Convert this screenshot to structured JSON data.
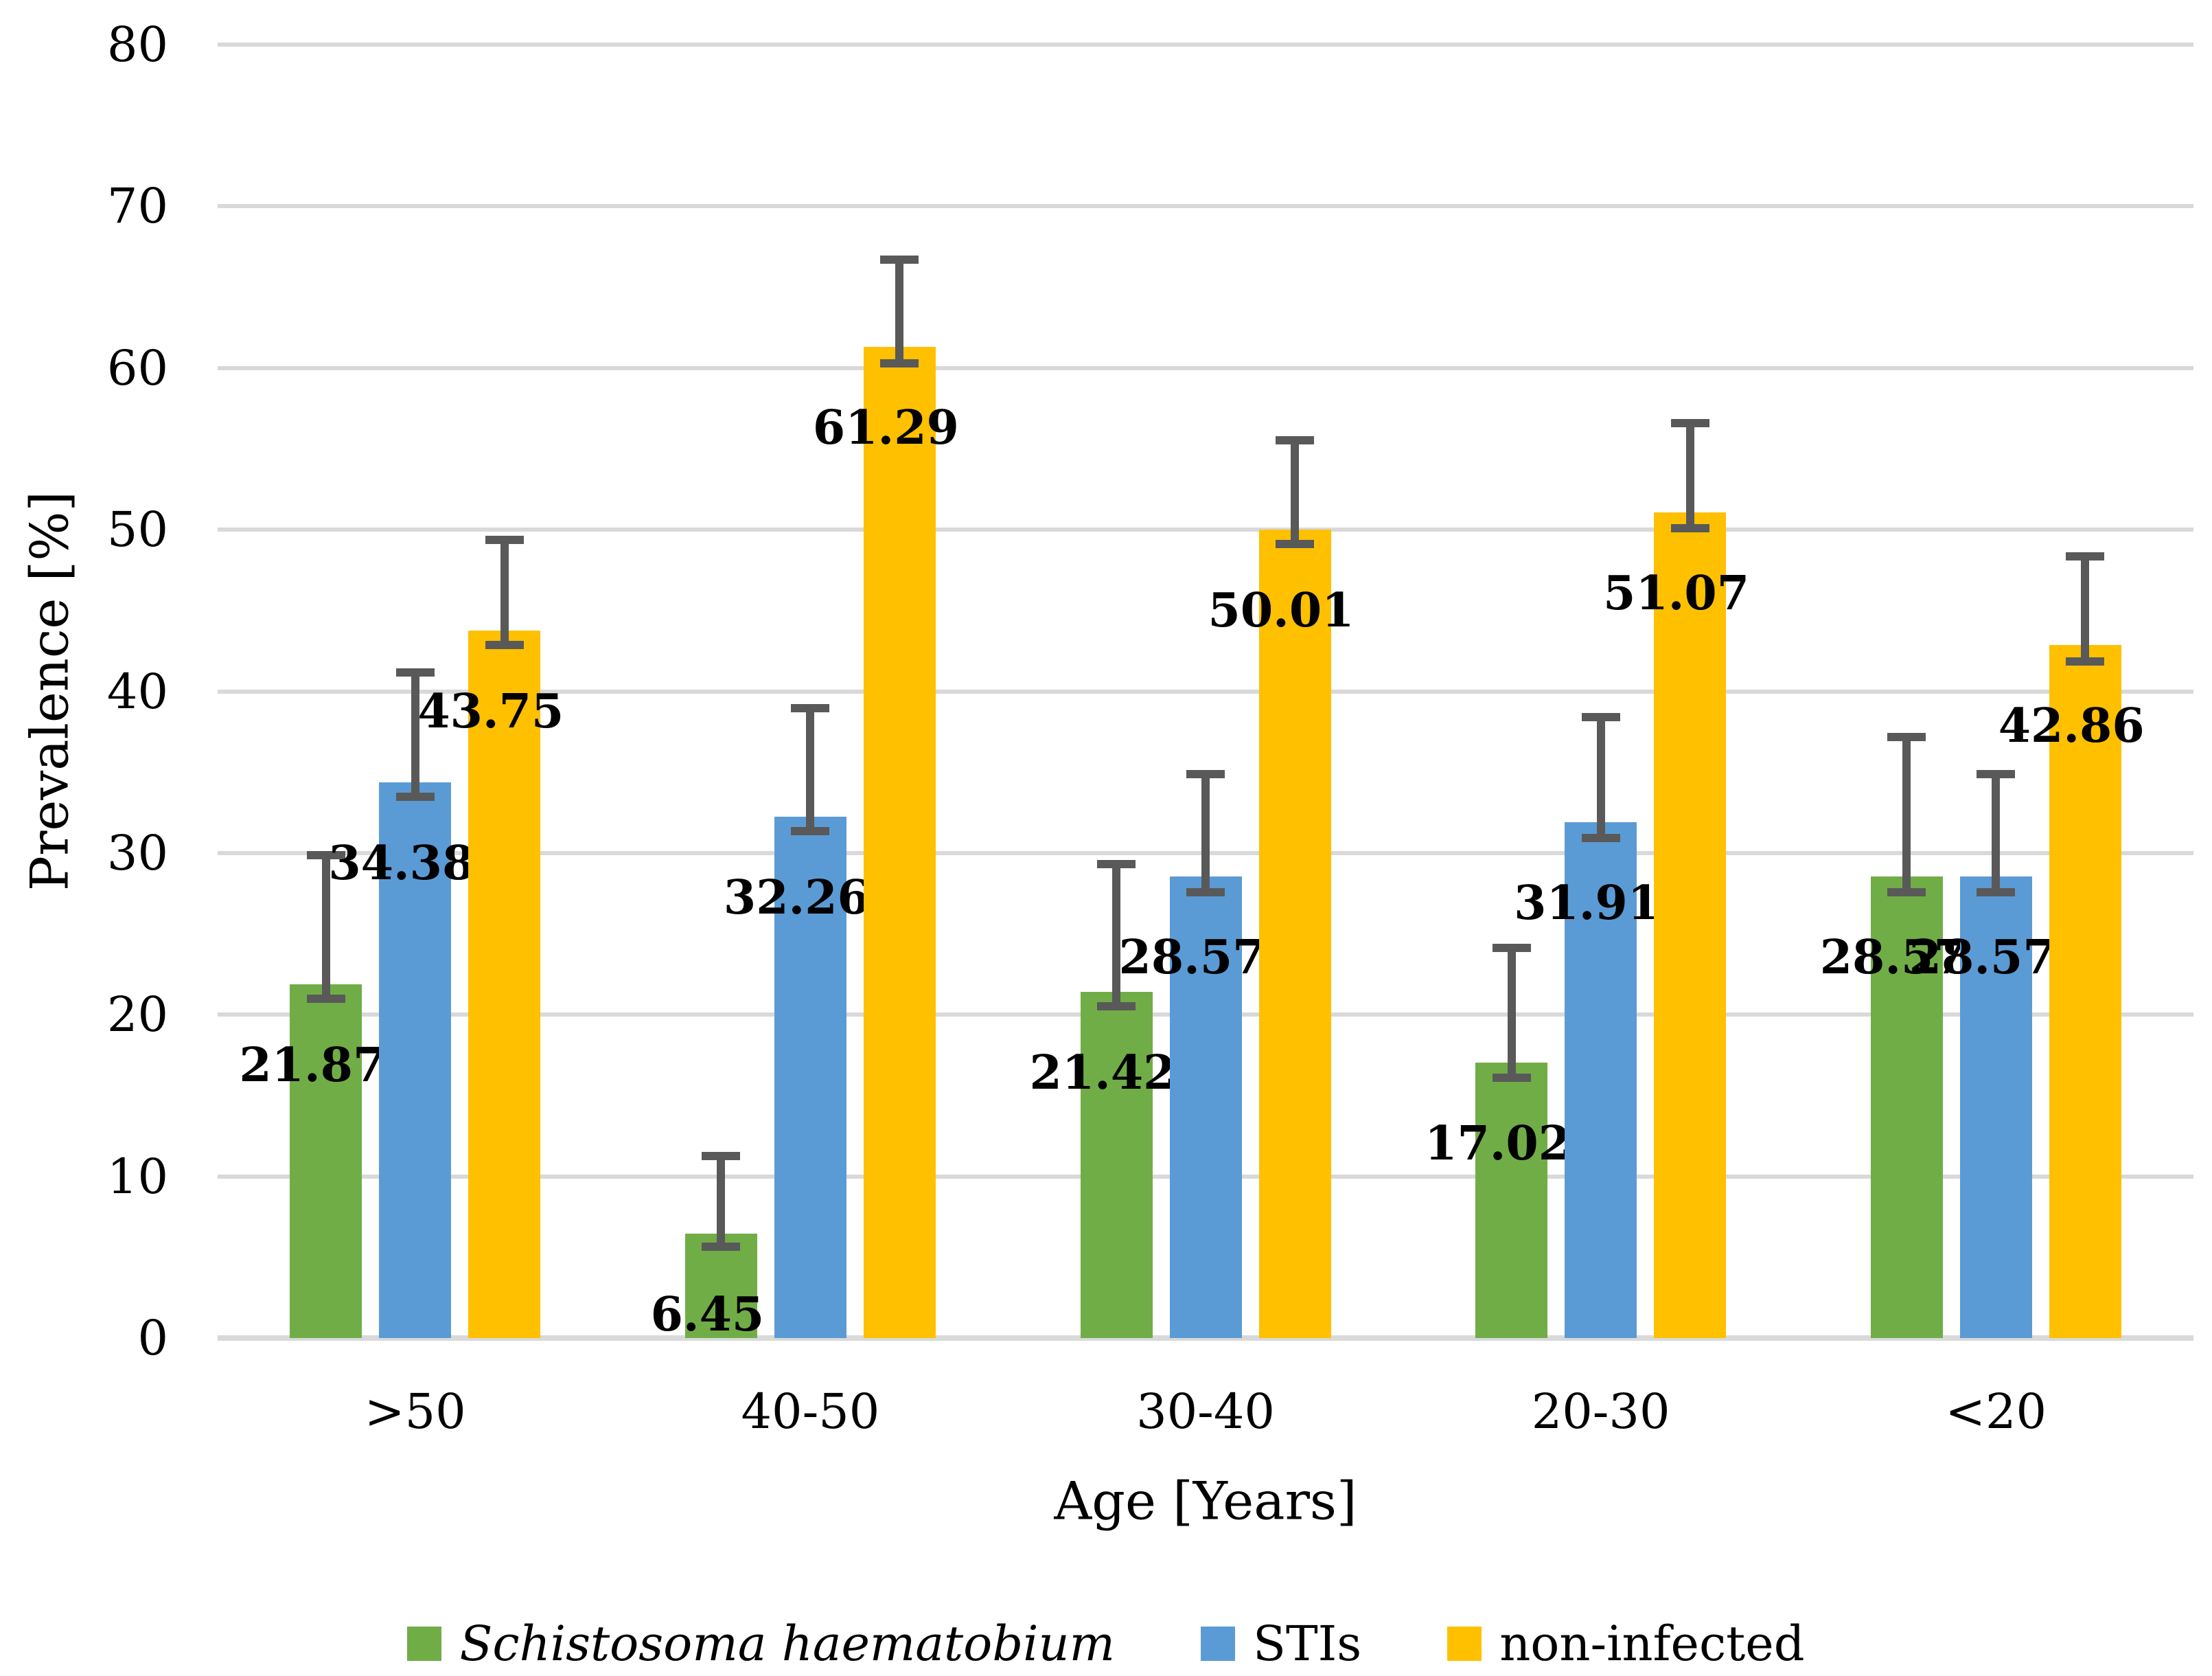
{
  "chart_data": {
    "type": "bar",
    "title": "",
    "xlabel": "Age [Years]",
    "ylabel": "Prevalence [%]",
    "categories": [
      ">50",
      "40-50",
      "30-40",
      "20-30",
      "<20"
    ],
    "y_ticks": [
      "0",
      "10",
      "20",
      "30",
      "40",
      "50",
      "60",
      "70",
      "80"
    ],
    "ylim": [
      0,
      80
    ],
    "grid": true,
    "legend_position": "bottom",
    "series": [
      {
        "key": "schistosoma-haematobium",
        "name": "Schistosoma haematobium",
        "italic": true,
        "color": "#70AD47",
        "values": [
          21.87,
          6.45,
          21.42,
          17.02,
          28.57
        ],
        "labels": [
          "21.87",
          "6.45",
          "21.42",
          "17.02",
          "28.57"
        ],
        "error_plus": [
          8.0,
          4.8,
          7.9,
          7.1,
          8.6
        ],
        "error_minus": [
          0.9,
          0.8,
          0.9,
          0.9,
          1.0
        ]
      },
      {
        "key": "stis",
        "name": "STIs",
        "italic": false,
        "color": "#5B9BD5",
        "values": [
          34.38,
          32.26,
          28.57,
          31.91,
          28.57
        ],
        "labels": [
          "34.38",
          "32.26",
          "28.57",
          "31.91",
          "28.57"
        ],
        "error_plus": [
          6.8,
          6.7,
          6.3,
          6.5,
          6.3
        ],
        "error_minus": [
          0.9,
          0.9,
          1.0,
          1.0,
          1.0
        ]
      },
      {
        "key": "non-infected",
        "name": "non-infected",
        "italic": false,
        "color": "#FFC000",
        "values": [
          43.75,
          61.29,
          50.01,
          51.07,
          42.86
        ],
        "labels": [
          "43.75",
          "61.29",
          "50.01",
          "51.07",
          "42.86"
        ],
        "error_plus": [
          5.6,
          5.4,
          5.5,
          5.5,
          5.5
        ],
        "error_minus": [
          0.9,
          1.0,
          0.9,
          1.0,
          1.0
        ]
      }
    ],
    "colors": {
      "gridline": "#D9D9D9",
      "axis_line": "#D9D9D9",
      "error_bar": "#595959",
      "text": "#000000",
      "background": "#FFFFFF"
    }
  }
}
